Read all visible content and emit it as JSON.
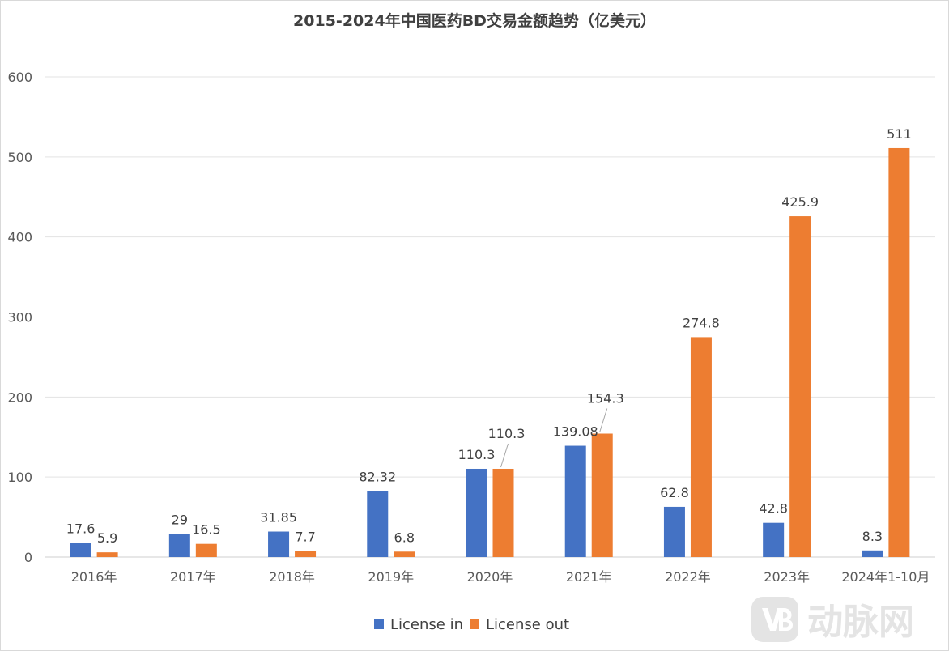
{
  "chart_data": {
    "type": "bar",
    "title": "2015-2024年中国医药BD交易金额趋势（亿美元）",
    "categories": [
      "2016年",
      "2017年",
      "2018年",
      "2019年",
      "2020年",
      "2021年",
      "2022年",
      "2023年",
      "2024年1-10月"
    ],
    "series": [
      {
        "name": "License in",
        "color": "#4472C4",
        "values": [
          17.6,
          29,
          31.85,
          82.32,
          110.3,
          139.08,
          62.8,
          42.8,
          8.3
        ]
      },
      {
        "name": "License out",
        "color": "#ED7D31",
        "values": [
          5.9,
          16.5,
          7.7,
          6.8,
          110.3,
          154.3,
          274.8,
          425.9,
          511
        ]
      }
    ],
    "ylim": [
      0,
      600
    ],
    "yticks": [
      0,
      100,
      200,
      300,
      400,
      500,
      600
    ],
    "grid": true,
    "legend": "bottom"
  },
  "watermark": {
    "logo_icon": "vb-logo-icon",
    "text": "动脉网"
  }
}
